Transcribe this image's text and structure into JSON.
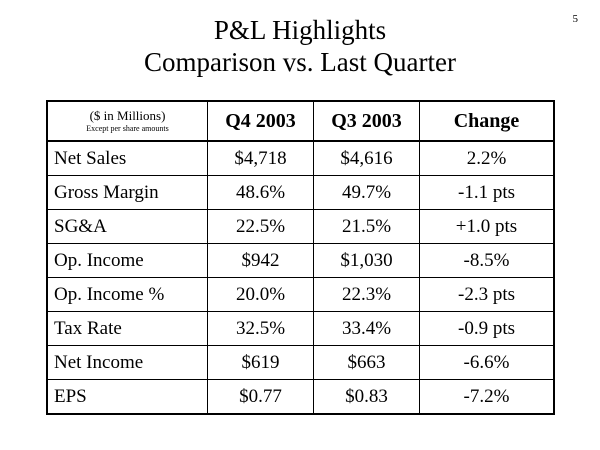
{
  "page_number": "5",
  "title": {
    "line1": "P&L Highlights",
    "line2": "Comparison vs. Last Quarter"
  },
  "table": {
    "header": {
      "units_main": "($ in Millions)",
      "units_note": "Except per share amounts",
      "columns": [
        "Q4 2003",
        "Q3 2003",
        "Change"
      ]
    },
    "rows": [
      {
        "label": "Net Sales",
        "q4": "$4,718",
        "q3": "$4,616",
        "change": "2.2%"
      },
      {
        "label": "Gross Margin",
        "q4": "48.6%",
        "q3": "49.7%",
        "change": "-1.1 pts"
      },
      {
        "label": "SG&A",
        "q4": "22.5%",
        "q3": "21.5%",
        "change": "+1.0 pts"
      },
      {
        "label": "Op. Income",
        "q4": "$942",
        "q3": "$1,030",
        "change": "-8.5%"
      },
      {
        "label": "Op. Income %",
        "q4": "20.0%",
        "q3": "22.3%",
        "change": "-2.3 pts"
      },
      {
        "label": "Tax Rate",
        "q4": "32.5%",
        "q3": "33.4%",
        "change": "-0.9 pts"
      },
      {
        "label": "Net Income",
        "q4": "$619",
        "q3": "$663",
        "change": "-6.6%"
      },
      {
        "label": "EPS",
        "q4": "$0.77",
        "q3": "$0.83",
        "change": "-7.2%"
      }
    ]
  }
}
